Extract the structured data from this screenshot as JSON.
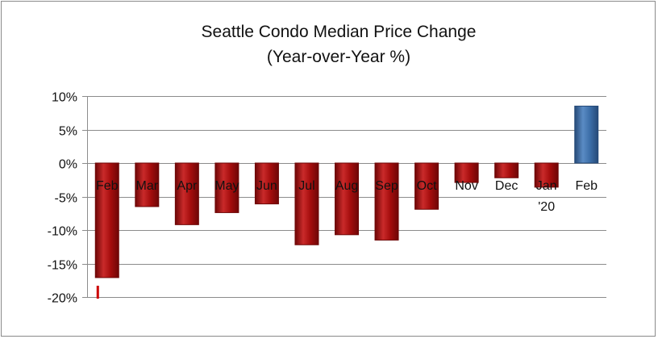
{
  "chart_data": {
    "type": "bar",
    "title": "Seattle Condo Median Price Change",
    "subtitle": "(Year-over-Year %)",
    "categories": [
      "Feb",
      "Mar",
      "Apr",
      "May",
      "Jun",
      "Jul",
      "Aug",
      "Sep",
      "Oct",
      "Nov",
      "Dec",
      "Jan",
      "Feb"
    ],
    "category_sublabels": [
      "",
      "",
      "",
      "",
      "",
      "",
      "",
      "",
      "",
      "",
      "",
      "'20",
      ""
    ],
    "values": [
      -17.1,
      -6.5,
      -9.2,
      -7.4,
      -6.1,
      -12.2,
      -10.7,
      -11.5,
      -6.9,
      -2.9,
      -2.2,
      -3.6,
      8.5
    ],
    "ylim": [
      -20,
      10
    ],
    "yticks": [
      10,
      5,
      0,
      -5,
      -10,
      -15,
      -20
    ],
    "ytick_labels": [
      "10%",
      "5%",
      "0%",
      "-5%",
      "-10%",
      "-15%",
      "-20%"
    ],
    "xlabel": "",
    "ylabel": "",
    "grid": true,
    "colors": {
      "negative": "#a50d0d",
      "negative_dark": "#6e0606",
      "negative_light": "#c92a2a",
      "positive": "#3c6ea8",
      "positive_dark": "#264a78",
      "positive_light": "#5a8bc4",
      "marker": "#cc0000"
    }
  }
}
